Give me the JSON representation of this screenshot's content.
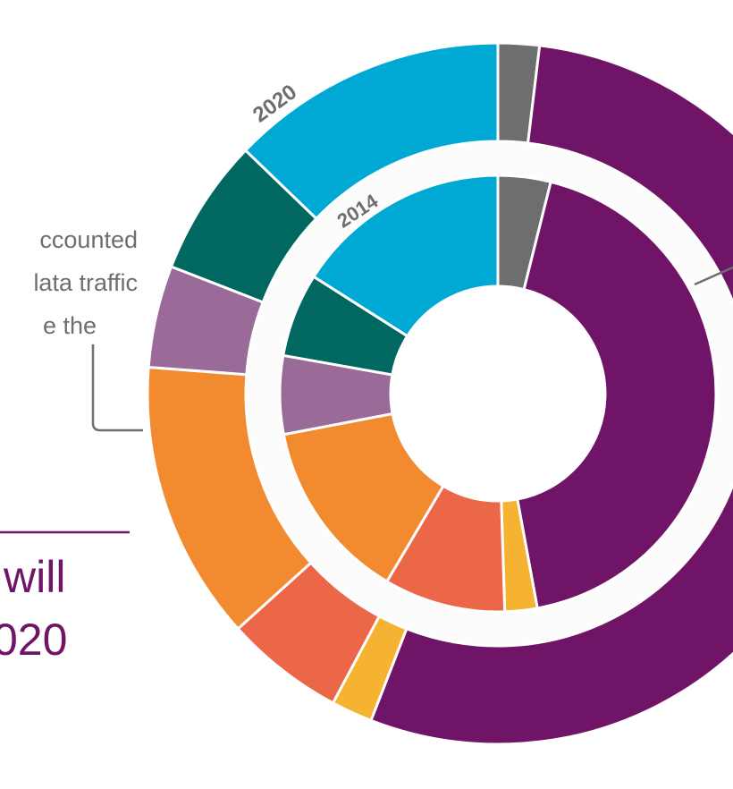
{
  "text": {
    "note_lines": [
      "ccounted",
      "lata traffic",
      "e the"
    ],
    "headline_lines": [
      "will",
      "020"
    ]
  },
  "chart_data": {
    "type": "donut",
    "title": "",
    "rings": [
      {
        "name": "2020",
        "values_percent": [
          1.9,
          54.0,
          1.9,
          5.5,
          12.9,
          4.7,
          6.3,
          12.8
        ]
      },
      {
        "name": "2014",
        "values_percent": [
          3.9,
          43.2,
          2.4,
          9.0,
          13.5,
          5.8,
          6.2,
          16.0
        ]
      }
    ],
    "segment_colors": [
      "#6d6e70",
      "#701467",
      "#f6b331",
      "#ec6648",
      "#f28b30",
      "#9a6a99",
      "#006860",
      "#00a9d4"
    ],
    "order": "clockwise from 12 o'clock"
  }
}
